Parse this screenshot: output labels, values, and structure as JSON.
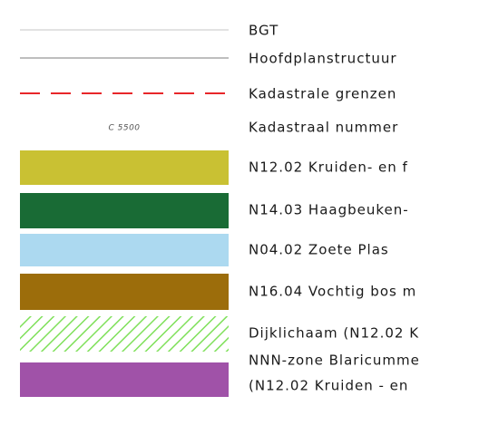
{
  "legend": {
    "items": [
      {
        "label": "BGT",
        "symbol": "line",
        "color": "#d9d9d9"
      },
      {
        "label": "Hoofdplanstructuur",
        "symbol": "line",
        "color": "#a9a9a9"
      },
      {
        "label": "Kadastrale grenzen",
        "symbol": "dashed",
        "color": "#e8262a"
      },
      {
        "label": "Kadastraal nummer",
        "symbol": "text",
        "sample": "C 5500"
      },
      {
        "label": "N12.02 Kruiden- en f",
        "symbol": "fill",
        "color": "#c9c133"
      },
      {
        "label": "N14.03 Haagbeuken-",
        "symbol": "fill",
        "color": "#196b35"
      },
      {
        "label": "N04.02 Zoete Plas",
        "symbol": "fill",
        "color": "#acd9f0"
      },
      {
        "label": "N16.04 Vochtig bos m",
        "symbol": "fill",
        "color": "#9c6d0b"
      },
      {
        "label": "Dijklichaam (N12.02 K",
        "symbol": "hatch",
        "color": "#7fe05a"
      },
      {
        "label": "NNN-zone Blaricumme",
        "label2": "(N12.02 Kruiden - en",
        "symbol": "fill",
        "color": "#a052a8"
      }
    ]
  }
}
